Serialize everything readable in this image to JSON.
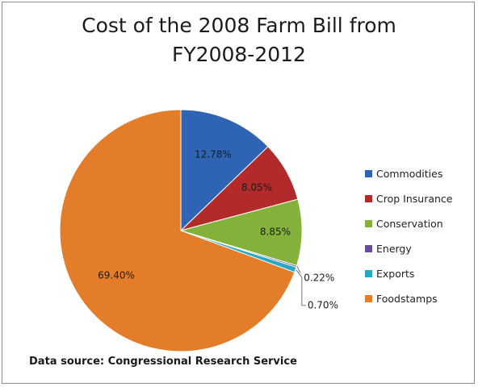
{
  "chart_data": {
    "type": "pie",
    "title": "Cost of the 2008 Farm Bill from FY2008-2012",
    "title_lines": [
      "Cost of the 2008 Farm Bill from",
      "FY2008-2012"
    ],
    "categories": [
      "Commodities",
      "Crop Insurance",
      "Conservation",
      "Energy",
      "Exports",
      "Foodstamps"
    ],
    "values": [
      12.78,
      8.05,
      8.85,
      0.22,
      0.7,
      69.4
    ],
    "labels": [
      "12.78%",
      "8.05%",
      "8.85%",
      "0.22%",
      "0.70%",
      "69.40%"
    ],
    "colors": [
      "#2e64b3",
      "#b32a2a",
      "#84b13a",
      "#6a4a9c",
      "#2aa7c4",
      "#e47d2a"
    ],
    "legend_position": "right",
    "source": "Data source: Congressional Research Service"
  }
}
